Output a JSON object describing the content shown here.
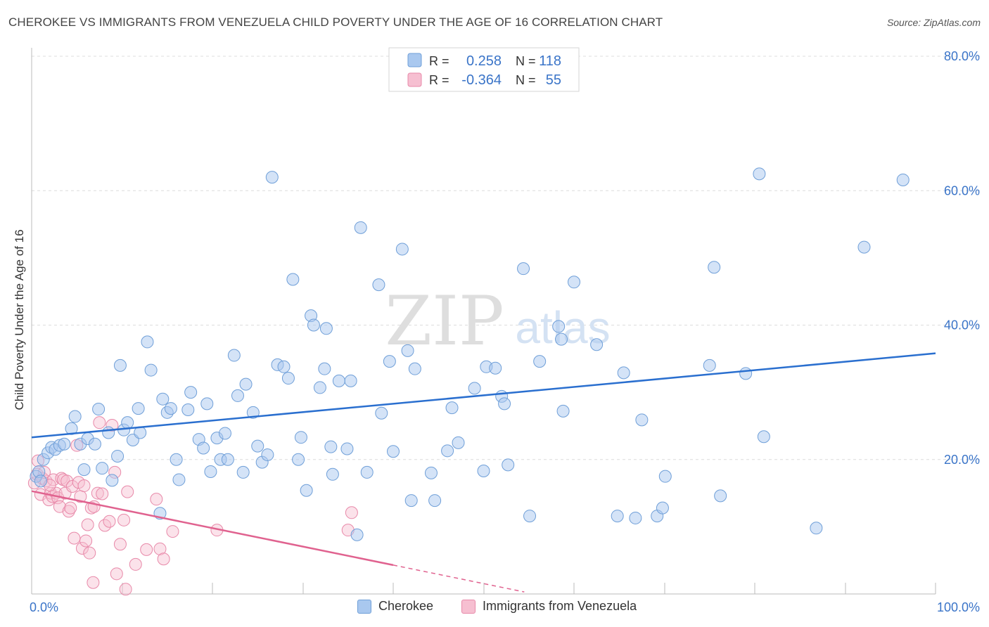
{
  "header": {
    "title": "CHEROKEE VS IMMIGRANTS FROM VENEZUELA CHILD POVERTY UNDER THE AGE OF 16 CORRELATION CHART",
    "source": "Source: ZipAtlas.com"
  },
  "watermark": {
    "zip": "ZIP",
    "atlas": "atlas"
  },
  "colors": {
    "blue_fill": "#a9c8ef",
    "blue_stroke": "#6f9fd8",
    "blue_line": "#2a6fcf",
    "pink_fill": "#f6bfd1",
    "pink_stroke": "#e889a9",
    "pink_line": "#e0628f",
    "axis_text": "#3a74c8"
  },
  "legend_top": {
    "rows": [
      {
        "r_label": "R =",
        "r_value": "0.258",
        "n_label": "N =",
        "n_value": "118"
      },
      {
        "r_label": "R =",
        "r_value": "-0.364",
        "n_label": "N =",
        "n_value": "55"
      }
    ]
  },
  "legend_bottom": {
    "items": [
      {
        "label": "Cherokee"
      },
      {
        "label": "Immigrants from Venezuela"
      }
    ]
  },
  "chart_data": {
    "type": "scatter",
    "title": "CHEROKEE VS IMMIGRANTS FROM VENEZUELA CHILD POVERTY UNDER THE AGE OF 16 CORRELATION CHART",
    "xlabel": "",
    "ylabel": "Child Poverty Under the Age of 16",
    "xlim": [
      0,
      100
    ],
    "ylim": [
      0,
      80
    ],
    "x_tick_labels": [
      "0.0%",
      "100.0%"
    ],
    "y_ticks": [
      20,
      40,
      60,
      80
    ],
    "y_tick_labels": [
      "20.0%",
      "40.0%",
      "60.0%",
      "80.0%"
    ],
    "grid": true,
    "legend_position": "top-center",
    "series": [
      {
        "name": "Cherokee",
        "r": 0.258,
        "n": 118,
        "trend": {
          "x": [
            0,
            100
          ],
          "y": [
            23.3,
            35.8
          ]
        },
        "points": [
          [
            0.5,
            17.5
          ],
          [
            0.8,
            18.2
          ],
          [
            1.0,
            16.8
          ],
          [
            1.3,
            20.0
          ],
          [
            1.8,
            21.0
          ],
          [
            2.2,
            21.8
          ],
          [
            2.6,
            21.5
          ],
          [
            3.1,
            22.1
          ],
          [
            3.6,
            22.3
          ],
          [
            4.4,
            24.6
          ],
          [
            4.8,
            26.4
          ],
          [
            5.4,
            22.3
          ],
          [
            5.8,
            18.5
          ],
          [
            6.2,
            23.1
          ],
          [
            7.0,
            22.3
          ],
          [
            7.4,
            27.5
          ],
          [
            7.8,
            18.7
          ],
          [
            8.5,
            24.0
          ],
          [
            8.9,
            16.9
          ],
          [
            9.5,
            20.5
          ],
          [
            9.8,
            34.0
          ],
          [
            10.2,
            24.4
          ],
          [
            10.6,
            25.5
          ],
          [
            11.2,
            22.9
          ],
          [
            11.8,
            27.6
          ],
          [
            12.0,
            24.0
          ],
          [
            12.8,
            37.5
          ],
          [
            13.2,
            33.3
          ],
          [
            14.2,
            12.0
          ],
          [
            14.5,
            29.0
          ],
          [
            15.0,
            27.0
          ],
          [
            15.4,
            27.6
          ],
          [
            16.0,
            20.0
          ],
          [
            16.3,
            17.0
          ],
          [
            17.3,
            27.4
          ],
          [
            17.6,
            30.0
          ],
          [
            18.5,
            23.0
          ],
          [
            19.0,
            21.7
          ],
          [
            19.4,
            28.3
          ],
          [
            19.8,
            18.2
          ],
          [
            20.5,
            23.2
          ],
          [
            20.9,
            20.0
          ],
          [
            21.4,
            23.9
          ],
          [
            21.7,
            20.0
          ],
          [
            22.4,
            35.5
          ],
          [
            22.8,
            29.5
          ],
          [
            23.4,
            18.1
          ],
          [
            23.7,
            31.2
          ],
          [
            24.5,
            27.0
          ],
          [
            25.0,
            22.0
          ],
          [
            25.5,
            19.6
          ],
          [
            26.1,
            20.7
          ],
          [
            26.6,
            62.0
          ],
          [
            27.2,
            34.1
          ],
          [
            27.9,
            33.8
          ],
          [
            28.4,
            32.1
          ],
          [
            28.9,
            46.8
          ],
          [
            29.5,
            20.0
          ],
          [
            29.8,
            23.3
          ],
          [
            30.4,
            15.4
          ],
          [
            30.9,
            41.4
          ],
          [
            31.2,
            40.0
          ],
          [
            31.9,
            30.7
          ],
          [
            32.4,
            33.5
          ],
          [
            32.6,
            39.5
          ],
          [
            33.1,
            21.9
          ],
          [
            33.3,
            17.8
          ],
          [
            34.0,
            31.7
          ],
          [
            34.9,
            21.6
          ],
          [
            35.3,
            31.7
          ],
          [
            36.0,
            8.8
          ],
          [
            36.4,
            54.5
          ],
          [
            37.1,
            18.1
          ],
          [
            38.4,
            46.0
          ],
          [
            38.7,
            26.9
          ],
          [
            39.6,
            34.6
          ],
          [
            40.0,
            21.2
          ],
          [
            41.0,
            51.3
          ],
          [
            41.6,
            36.2
          ],
          [
            42.0,
            13.9
          ],
          [
            42.4,
            33.5
          ],
          [
            44.2,
            18.0
          ],
          [
            44.6,
            13.9
          ],
          [
            46.0,
            21.3
          ],
          [
            46.5,
            27.7
          ],
          [
            47.2,
            22.5
          ],
          [
            49.0,
            30.6
          ],
          [
            50.0,
            18.3
          ],
          [
            50.3,
            33.8
          ],
          [
            51.3,
            33.6
          ],
          [
            52.0,
            29.4
          ],
          [
            52.3,
            28.3
          ],
          [
            52.7,
            19.2
          ],
          [
            54.4,
            48.4
          ],
          [
            55.1,
            11.6
          ],
          [
            56.2,
            34.6
          ],
          [
            58.3,
            39.8
          ],
          [
            58.6,
            37.9
          ],
          [
            58.8,
            27.2
          ],
          [
            60.0,
            46.4
          ],
          [
            62.5,
            37.1
          ],
          [
            64.8,
            11.6
          ],
          [
            65.5,
            32.9
          ],
          [
            66.8,
            11.3
          ],
          [
            67.5,
            25.9
          ],
          [
            69.2,
            11.6
          ],
          [
            69.8,
            12.8
          ],
          [
            70.1,
            17.5
          ],
          [
            75.0,
            34.0
          ],
          [
            75.5,
            48.6
          ],
          [
            76.2,
            14.6
          ],
          [
            79.0,
            32.8
          ],
          [
            80.5,
            62.5
          ],
          [
            81.0,
            23.4
          ],
          [
            86.8,
            9.8
          ],
          [
            92.1,
            51.6
          ],
          [
            96.4,
            61.6
          ]
        ]
      },
      {
        "name": "Immigrants from Venezuela",
        "r": -0.364,
        "n": 55,
        "trend": {
          "x": [
            0,
            40.0
          ],
          "y": [
            15.3,
            4.3
          ]
        },
        "trend_dashed": {
          "x": [
            40.0,
            54.5
          ],
          "y": [
            4.3,
            0.3
          ]
        },
        "points": [
          [
            0.3,
            16.5
          ],
          [
            0.6,
            17.8
          ],
          [
            0.7,
            19.8
          ],
          [
            1.0,
            14.8
          ],
          [
            1.2,
            17.2
          ],
          [
            1.6,
            16.8
          ],
          [
            1.9,
            14.0
          ],
          [
            2.1,
            15.0
          ],
          [
            2.3,
            14.5
          ],
          [
            2.4,
            17.0
          ],
          [
            2.7,
            15.0
          ],
          [
            2.9,
            14.3
          ],
          [
            3.1,
            13.0
          ],
          [
            3.3,
            17.2
          ],
          [
            3.5,
            17.0
          ],
          [
            3.7,
            15.0
          ],
          [
            3.9,
            16.8
          ],
          [
            4.1,
            12.3
          ],
          [
            4.3,
            12.8
          ],
          [
            4.5,
            16.0
          ],
          [
            4.7,
            8.3
          ],
          [
            5.0,
            22.1
          ],
          [
            5.2,
            16.6
          ],
          [
            5.4,
            14.5
          ],
          [
            5.6,
            6.8
          ],
          [
            5.8,
            16.1
          ],
          [
            6.0,
            7.9
          ],
          [
            6.2,
            10.3
          ],
          [
            6.4,
            6.1
          ],
          [
            6.6,
            12.8
          ],
          [
            6.8,
            1.7
          ],
          [
            7.3,
            15.0
          ],
          [
            7.5,
            25.5
          ],
          [
            7.8,
            14.9
          ],
          [
            8.1,
            10.2
          ],
          [
            8.6,
            10.8
          ],
          [
            8.9,
            25.1
          ],
          [
            9.2,
            18.1
          ],
          [
            9.4,
            3.0
          ],
          [
            9.8,
            7.4
          ],
          [
            10.2,
            11.0
          ],
          [
            10.4,
            0.7
          ],
          [
            10.6,
            15.2
          ],
          [
            11.5,
            4.4
          ],
          [
            13.8,
            14.1
          ],
          [
            14.2,
            6.7
          ],
          [
            14.6,
            5.2
          ],
          [
            15.6,
            9.3
          ],
          [
            20.5,
            9.5
          ],
          [
            35.0,
            9.5
          ],
          [
            35.4,
            12.1
          ],
          [
            1.4,
            18.1
          ],
          [
            2.0,
            16.2
          ],
          [
            6.9,
            13.0
          ],
          [
            12.7,
            6.6
          ]
        ]
      }
    ]
  }
}
